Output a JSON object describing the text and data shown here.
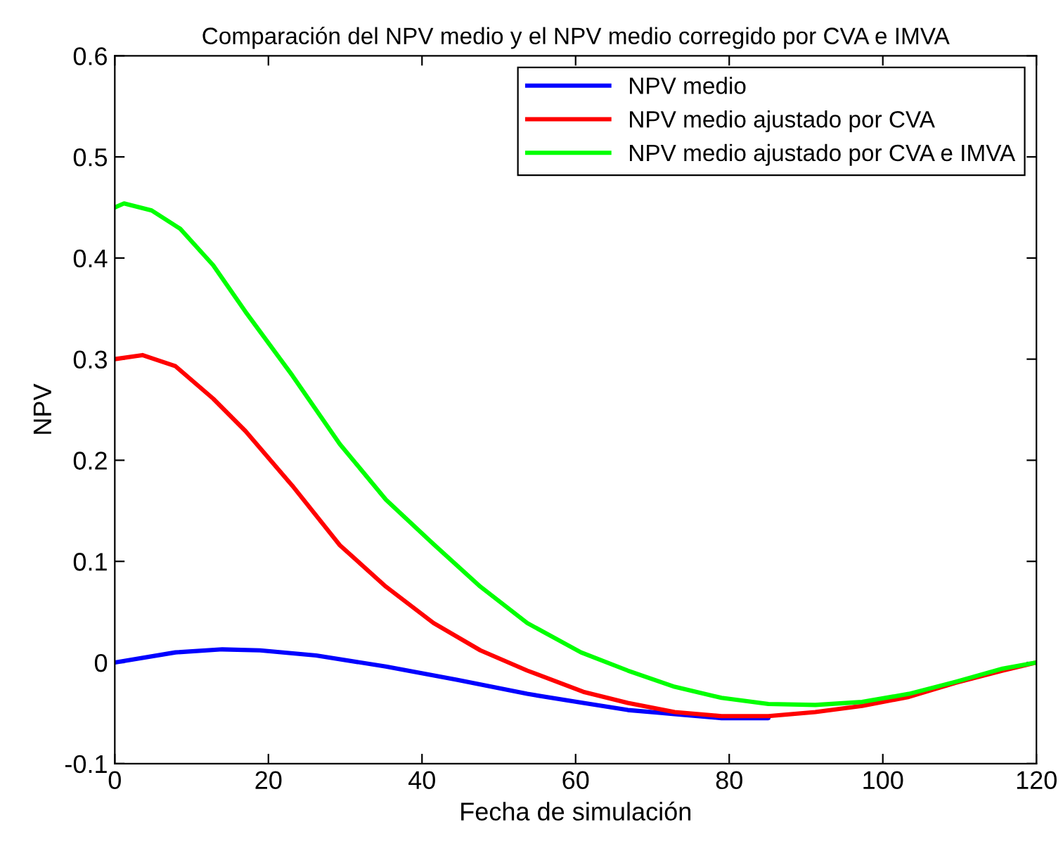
{
  "chart_data": {
    "type": "line",
    "title": "Comparación del NPV medio y el NPV medio corregido por CVA e IMVA",
    "xlabel": "Fecha de simulación",
    "ylabel": "NPV",
    "xlim": [
      0,
      120
    ],
    "xticks": [
      0,
      20,
      40,
      60,
      80,
      100,
      120
    ],
    "ylim": [
      -0.1,
      0.6
    ],
    "yticks": [
      -0.1,
      0,
      0.1,
      0.2,
      0.3,
      0.4,
      0.5,
      0.6
    ],
    "grid": false,
    "legend": "top right",
    "marker": "none",
    "line_style": "solid",
    "series": [
      {
        "name": "NPV medio",
        "color": "#0000ff",
        "x": [
          0,
          7.9,
          14,
          18.9,
          26.2,
          35.3,
          44.5,
          53.7,
          61,
          66.8,
          72.9,
          79,
          85.1
        ],
        "values": [
          0,
          0.01,
          0.013,
          0.012,
          0.007,
          -0.004,
          -0.017,
          -0.031,
          -0.04,
          -0.047,
          -0.051,
          -0.055,
          -0.055
        ]
      },
      {
        "name": "NPV medio ajustado por CVA",
        "color": "#ff0000",
        "x": [
          0,
          3.6,
          7.9,
          12.8,
          17,
          23.1,
          29.3,
          35.3,
          41.5,
          47.6,
          53.7,
          61,
          66.8,
          72.9,
          79,
          85.1,
          91.2,
          97.3,
          103.4,
          109.5,
          115.6,
          120
        ],
        "values": [
          0.3,
          0.304,
          0.293,
          0.261,
          0.229,
          0.175,
          0.116,
          0.075,
          0.039,
          0.012,
          -0.008,
          -0.029,
          -0.04,
          -0.049,
          -0.053,
          -0.053,
          -0.049,
          -0.043,
          -0.034,
          -0.02,
          -0.008,
          0
        ]
      },
      {
        "name": "NPV medio ajustado por CVA e IMVA",
        "color": "#00ff00",
        "x": [
          0,
          1.2,
          4.8,
          8.5,
          12.8,
          17,
          23.1,
          29.3,
          35.3,
          41.5,
          47.6,
          53.7,
          60.7,
          66.8,
          72.9,
          79,
          85.1,
          91.2,
          97.3,
          103.4,
          109.5,
          115.6,
          120
        ],
        "values": [
          0.45,
          0.454,
          0.447,
          0.429,
          0.393,
          0.347,
          0.284,
          0.216,
          0.161,
          0.117,
          0.075,
          0.039,
          0.01,
          -0.008,
          -0.024,
          -0.035,
          -0.041,
          -0.042,
          -0.039,
          -0.031,
          -0.019,
          -0.006,
          0
        ]
      }
    ]
  }
}
